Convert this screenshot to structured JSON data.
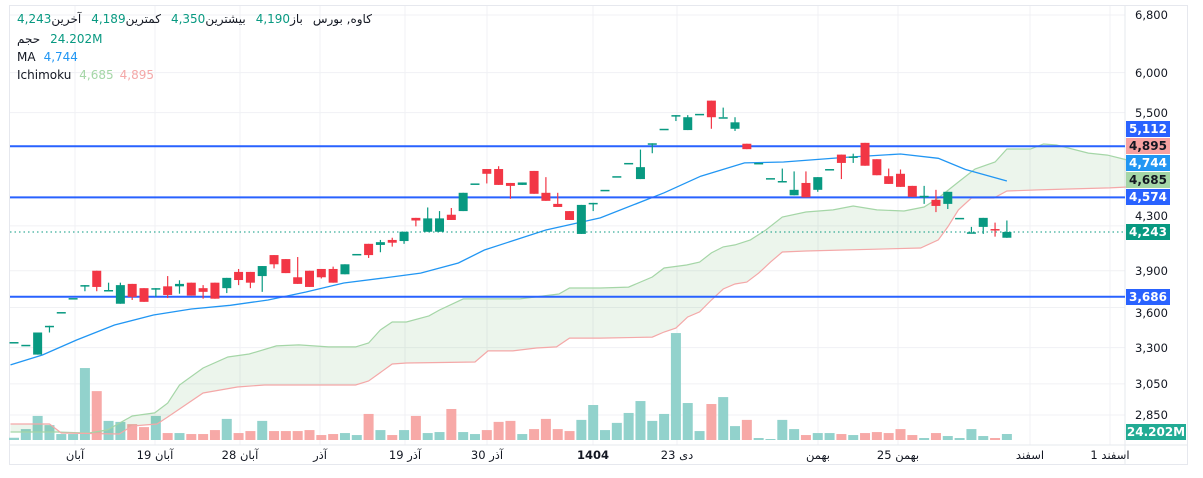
{
  "legend": {
    "symbol": "کاوه, بورس",
    "open_label": "باز",
    "open": "4,190",
    "high_label": "بیشترین",
    "high": "4,350",
    "low_label": "کمترین",
    "low": "4,189",
    "close_label": "آخرین",
    "close": "4,243",
    "volume_label": "حجم",
    "volume": "24.202M",
    "ma_label": "MA",
    "ma": "4,744",
    "ichimoku_label": "Ichimoku",
    "ichimoku_a": "4,685",
    "ichimoku_b": "4,895"
  },
  "colors": {
    "up": "#089981",
    "down": "#f23645",
    "volume_up": "#92d2cc",
    "volume_down": "#f7a9a7",
    "ma": "#2196f3",
    "span_a": "#a5d6a7",
    "span_b": "#f4a8a8",
    "cloud": "rgba(67,160,71,0.10)",
    "hline": "#2962ff",
    "last_price": "#089981"
  },
  "chart_data": {
    "type": "candlestick",
    "y_scale": "log",
    "ylim": [
      2700,
      6900
    ],
    "grid": true,
    "price_ticks": [
      "6,800",
      "6,000",
      "5,500",
      "4,300",
      "3,900",
      "3,600",
      "3,300",
      "3,050",
      "2,850"
    ],
    "price_tick_values": [
      6800,
      6000,
      5500,
      4300,
      3900,
      3600,
      3300,
      3050,
      2850
    ],
    "time_labels": [
      "آبان",
      "19 آبان",
      "28 آبان",
      "آذر",
      "19 آذر",
      "30 آذر",
      "1404",
      "23 دی",
      "بهمن",
      "25 بهمن",
      "اسفند",
      "1 اسفند"
    ],
    "candles_ohlc": [
      [
        3340,
        3340,
        3340,
        3340
      ],
      [
        3320,
        3320,
        3320,
        3320
      ],
      [
        3250,
        3410,
        3250,
        3410
      ],
      [
        3460,
        3460,
        3410,
        3460
      ],
      [
        3565,
        3565,
        3565,
        3565
      ],
      [
        3675,
        3675,
        3675,
        3675
      ],
      [
        3780,
        3780,
        3730,
        3780
      ],
      [
        3900,
        3900,
        3730,
        3765
      ],
      [
        3740,
        3800,
        3740,
        3740
      ],
      [
        3630,
        3800,
        3630,
        3780
      ],
      [
        3790,
        3790,
        3660,
        3685
      ],
      [
        3755,
        3755,
        3645,
        3645
      ],
      [
        3755,
        3755,
        3685,
        3755
      ],
      [
        3770,
        3855,
        3675,
        3700
      ],
      [
        3770,
        3820,
        3710,
        3790
      ],
      [
        3800,
        3800,
        3695,
        3695
      ],
      [
        3755,
        3780,
        3670,
        3725
      ],
      [
        3800,
        3800,
        3670,
        3670
      ],
      [
        3755,
        3840,
        3715,
        3840
      ],
      [
        3890,
        3915,
        3780,
        3822
      ],
      [
        3890,
        3890,
        3755,
        3800
      ],
      [
        3855,
        3940,
        3725,
        3940
      ],
      [
        4035,
        4035,
        3920,
        3955
      ],
      [
        4000,
        4000,
        3880,
        3880
      ],
      [
        3845,
        4018,
        3790,
        3790
      ],
      [
        3900,
        3900,
        3765,
        3765
      ],
      [
        3915,
        3915,
        3835,
        3845
      ],
      [
        3915,
        3935,
        3800,
        3800
      ],
      [
        3870,
        3955,
        3870,
        3955
      ],
      [
        4045,
        4045,
        4045,
        4045
      ],
      [
        4135,
        4135,
        4010,
        4035
      ],
      [
        4125,
        4170,
        4060,
        4150
      ],
      [
        4170,
        4190,
        4110,
        4145
      ],
      [
        4160,
        4245,
        4135,
        4245
      ],
      [
        4375,
        4375,
        4295,
        4350
      ],
      [
        4245,
        4475,
        4245,
        4370
      ],
      [
        4245,
        4440,
        4245,
        4370
      ],
      [
        4405,
        4470,
        4355,
        4355
      ],
      [
        4440,
        4620,
        4440,
        4620
      ],
      [
        4715,
        4715,
        4715,
        4715
      ],
      [
        4865,
        4865,
        4715,
        4815
      ],
      [
        4865,
        4895,
        4700,
        4700
      ],
      [
        4720,
        4720,
        4560,
        4690
      ],
      [
        4700,
        4725,
        4700,
        4725
      ],
      [
        4845,
        4845,
        4610,
        4610
      ],
      [
        4620,
        4780,
        4540,
        4540
      ],
      [
        4510,
        4620,
        4480,
        4480
      ],
      [
        4440,
        4440,
        4355,
        4355
      ],
      [
        4225,
        4500,
        4225,
        4500
      ],
      [
        4520,
        4520,
        4440,
        4520
      ],
      [
        4650,
        4650,
        4650,
        4650
      ],
      [
        4790,
        4790,
        4790,
        4790
      ],
      [
        4930,
        4930,
        4930,
        4930
      ],
      [
        4760,
        5075,
        4760,
        4885
      ],
      [
        5145,
        5145,
        5035,
        5145
      ],
      [
        5310,
        5310,
        5310,
        5310
      ],
      [
        5470,
        5470,
        5400,
        5470
      ],
      [
        5295,
        5470,
        5295,
        5445
      ],
      [
        5485,
        5485,
        5485,
        5485
      ],
      [
        5645,
        5645,
        5310,
        5445
      ],
      [
        5445,
        5560,
        5445,
        5445
      ],
      [
        5310,
        5445,
        5285,
        5385
      ],
      [
        5140,
        5140,
        5080,
        5080
      ],
      [
        4930,
        4930,
        4930,
        4930
      ],
      [
        4770,
        4770,
        4770,
        4770
      ],
      [
        4740,
        4870,
        4740,
        4740
      ],
      [
        4595,
        4840,
        4595,
        4650
      ],
      [
        4720,
        4840,
        4575,
        4575
      ],
      [
        4650,
        4780,
        4630,
        4780
      ],
      [
        4865,
        4865,
        4865,
        4865
      ],
      [
        5020,
        5020,
        4760,
        4930
      ],
      [
        5000,
        5030,
        4930,
        5000
      ],
      [
        5150,
        5150,
        4900,
        4900
      ],
      [
        4970,
        4970,
        4800,
        4800
      ],
      [
        4790,
        4870,
        4710,
        4710
      ],
      [
        4815,
        4860,
        4680,
        4680
      ],
      [
        4690,
        4690,
        4580,
        4580
      ],
      [
        4590,
        4690,
        4510,
        4590
      ],
      [
        4550,
        4650,
        4430,
        4490
      ],
      [
        4510,
        4630,
        4460,
        4630
      ],
      [
        4375,
        4375,
        4375,
        4375
      ],
      [
        4240,
        4290,
        4240,
        4240
      ],
      [
        4290,
        4375,
        4225,
        4375
      ],
      [
        4270,
        4330,
        4200,
        4260
      ],
      [
        4190,
        4350,
        4189,
        4243
      ]
    ],
    "volume_millions": [
      9,
      44,
      97,
      60,
      24,
      24,
      290,
      197,
      77,
      73,
      64,
      52,
      97,
      28,
      28,
      24,
      24,
      40,
      85,
      28,
      36,
      77,
      36,
      36,
      36,
      40,
      20,
      24,
      28,
      20,
      105,
      40,
      20,
      40,
      97,
      28,
      32,
      125,
      32,
      24,
      40,
      73,
      77,
      24,
      44,
      85,
      44,
      36,
      81,
      141,
      40,
      69,
      109,
      157,
      77,
      105,
      431,
      149,
      36,
      145,
      173,
      56,
      81,
      8,
      4,
      81,
      44,
      20,
      28,
      28,
      24,
      20,
      28,
      32,
      28,
      44,
      20,
      8,
      28,
      16,
      8,
      44,
      16,
      8,
      24.2
    ],
    "ma": [
      [
        -0.3,
        3178
      ],
      [
        2.4,
        3247
      ],
      [
        5.3,
        3355
      ],
      [
        8.5,
        3466
      ],
      [
        11.8,
        3542
      ],
      [
        15,
        3589
      ],
      [
        18.3,
        3618
      ],
      [
        21.5,
        3660
      ],
      [
        24.7,
        3724
      ],
      [
        27.9,
        3797
      ],
      [
        31.2,
        3838
      ],
      [
        34.4,
        3880
      ],
      [
        37.6,
        3966
      ],
      [
        39.8,
        4080
      ],
      [
        45,
        4261
      ],
      [
        49.6,
        4375
      ],
      [
        55,
        4620
      ],
      [
        58.1,
        4790
      ],
      [
        61.8,
        4930
      ],
      [
        65.1,
        4940
      ],
      [
        70.3,
        4990
      ],
      [
        75,
        5027
      ],
      [
        78.2,
        4980
      ],
      [
        80.5,
        4860
      ],
      [
        84,
        4740
      ]
    ],
    "ichimoku_span_a": [
      [
        -0.3,
        2747
      ],
      [
        3.6,
        2747
      ],
      [
        6.3,
        2740
      ],
      [
        7.9,
        2759
      ],
      [
        10,
        2844
      ],
      [
        11.9,
        2863
      ],
      [
        13,
        2925
      ],
      [
        14,
        3042
      ],
      [
        16,
        3157
      ],
      [
        18.1,
        3233
      ],
      [
        19.9,
        3254
      ],
      [
        22.2,
        3312
      ],
      [
        24.1,
        3319
      ],
      [
        26.6,
        3305
      ],
      [
        28.9,
        3305
      ],
      [
        30,
        3333
      ],
      [
        31,
        3429
      ],
      [
        32,
        3489
      ],
      [
        33.2,
        3489
      ],
      [
        35.1,
        3535
      ],
      [
        36,
        3581
      ],
      [
        38,
        3668
      ],
      [
        42.8,
        3668
      ],
      [
        46.1,
        3708
      ],
      [
        47,
        3756
      ],
      [
        49.6,
        3756
      ],
      [
        52,
        3764
      ],
      [
        54,
        3847
      ],
      [
        55,
        3923
      ],
      [
        56.9,
        3949
      ],
      [
        58,
        3974
      ],
      [
        59,
        4054
      ],
      [
        60,
        4107
      ],
      [
        61,
        4125
      ],
      [
        62.3,
        4170
      ],
      [
        63.6,
        4261
      ],
      [
        65,
        4383
      ],
      [
        67,
        4431
      ],
      [
        69.3,
        4451
      ],
      [
        71,
        4489
      ],
      [
        73,
        4451
      ],
      [
        75.3,
        4441
      ],
      [
        77,
        4480
      ],
      [
        78.2,
        4568
      ],
      [
        79.9,
        4730
      ],
      [
        81.3,
        4865
      ],
      [
        83,
        4940
      ],
      [
        84,
        5082
      ],
      [
        86,
        5082
      ],
      [
        87.1,
        5137
      ],
      [
        88.2,
        5126
      ],
      [
        90.9,
        5037
      ],
      [
        92.5,
        5015
      ],
      [
        94.2,
        4962
      ]
    ],
    "ichimoku_span_b": [
      [
        -0.3,
        2795
      ],
      [
        3,
        2795
      ],
      [
        4,
        2741
      ],
      [
        8.9,
        2735
      ],
      [
        10,
        2783
      ],
      [
        12.1,
        2795
      ],
      [
        13,
        2838
      ],
      [
        16,
        2990
      ],
      [
        18.9,
        3029
      ],
      [
        21.2,
        3042
      ],
      [
        28.9,
        3042
      ],
      [
        30,
        3069
      ],
      [
        32,
        3184
      ],
      [
        33.2,
        3191
      ],
      [
        39,
        3198
      ],
      [
        40.1,
        3276
      ],
      [
        42.2,
        3276
      ],
      [
        44.2,
        3297
      ],
      [
        45.9,
        3305
      ],
      [
        47,
        3369
      ],
      [
        49.6,
        3369
      ],
      [
        54,
        3376
      ],
      [
        55,
        3414
      ],
      [
        56,
        3443
      ],
      [
        57,
        3527
      ],
      [
        58,
        3566
      ],
      [
        59,
        3660
      ],
      [
        60,
        3748
      ],
      [
        61,
        3789
      ],
      [
        62,
        3805
      ],
      [
        63,
        3880
      ],
      [
        64,
        3974
      ],
      [
        65,
        4062
      ],
      [
        67,
        4071
      ],
      [
        76.7,
        4098
      ],
      [
        78.2,
        4170
      ],
      [
        79,
        4290
      ],
      [
        79.9,
        4451
      ],
      [
        81,
        4568
      ],
      [
        82.9,
        4568
      ],
      [
        84,
        4638
      ],
      [
        86.7,
        4649
      ],
      [
        89.6,
        4659
      ],
      [
        92.7,
        4669
      ],
      [
        94.2,
        4679
      ]
    ],
    "horizontal_lines": [
      5112,
      4574,
      3686
    ],
    "last_price": 4243,
    "right_tags": [
      {
        "value": 5112,
        "text": "5,112",
        "bg": "#2962ff",
        "fg": "#ffffff"
      },
      {
        "value": 4895,
        "text": "4,895",
        "bg": "#f7a1a1",
        "fg": "#131722"
      },
      {
        "value": 4744,
        "text": "4,744",
        "bg": "#2196f3",
        "fg": "#ffffff"
      },
      {
        "value": 4685,
        "text": "4,685",
        "bg": "#a5d6a7",
        "fg": "#131722"
      },
      {
        "value": 4574,
        "text": "4,574",
        "bg": "#2962ff",
        "fg": "#ffffff"
      },
      {
        "value": 4243,
        "text": "4,243",
        "bg": "#089981",
        "fg": "#ffffff"
      },
      {
        "value": 3686,
        "text": "3,686",
        "bg": "#2962ff",
        "fg": "#ffffff"
      }
    ],
    "volume_tag": {
      "text": "24.202M",
      "bg": "#22ab94",
      "fg": "#ffffff"
    }
  }
}
